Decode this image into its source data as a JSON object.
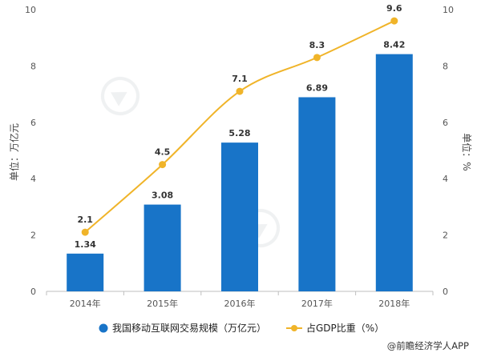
{
  "chart_data": {
    "type": "bar+line",
    "categories": [
      "2014年",
      "2015年",
      "2016年",
      "2017年",
      "2018年"
    ],
    "series": [
      {
        "name": "我国移动互联网交易规模（万亿元）",
        "type": "bar",
        "axis": "left",
        "color": "#1874c8",
        "values": [
          1.34,
          3.08,
          5.28,
          6.89,
          8.42
        ],
        "labels": [
          "1.34",
          "3.08",
          "5.28",
          "6.89",
          "8.42"
        ]
      },
      {
        "name": "占GDP比重（%）",
        "type": "line",
        "axis": "right",
        "color": "#f0b429",
        "values": [
          2.1,
          4.5,
          7.1,
          8.3,
          9.6
        ],
        "labels": [
          "2.1",
          "4.5",
          "7.1",
          "8.3",
          "9.6"
        ]
      }
    ],
    "ylabel": "单位：万亿元",
    "y2label": "单位：%",
    "ylim": [
      0,
      10
    ],
    "y2lim": [
      0,
      10
    ],
    "yticks": [
      0,
      2,
      4,
      6,
      8,
      10
    ],
    "y2ticks": [
      0,
      2,
      4,
      6,
      8,
      10
    ],
    "grid": false,
    "legend_position": "bottom"
  },
  "source": "@前瞻经济学人APP"
}
